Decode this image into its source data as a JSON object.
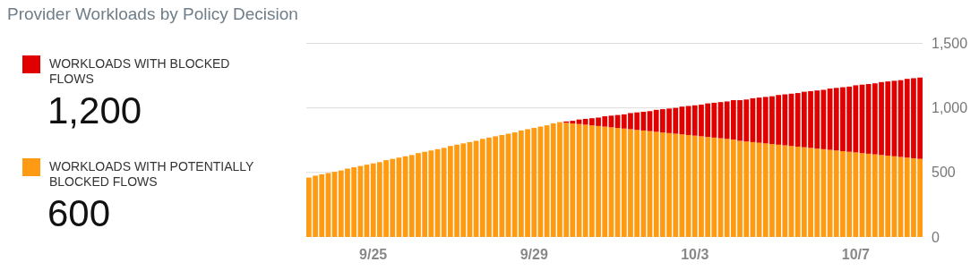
{
  "chart_data": {
    "type": "bar",
    "title": "Provider Workloads by Policy Decision",
    "stacked": true,
    "categories": [
      null,
      null,
      null,
      null,
      null,
      null,
      null,
      null,
      null,
      null,
      "9/25",
      null,
      null,
      null,
      null,
      null,
      null,
      null,
      null,
      null,
      null,
      null,
      null,
      null,
      null,
      null,
      null,
      null,
      null,
      null,
      null,
      null,
      null,
      null,
      null,
      "9/29",
      null,
      null,
      null,
      null,
      null,
      null,
      null,
      null,
      null,
      null,
      null,
      null,
      null,
      null,
      null,
      null,
      null,
      null,
      null,
      null,
      null,
      null,
      null,
      null,
      "10/3",
      null,
      null,
      null,
      null,
      null,
      null,
      null,
      null,
      null,
      null,
      null,
      null,
      null,
      null,
      null,
      null,
      null,
      null,
      null,
      null,
      null,
      null,
      null,
      null,
      "10/7",
      null,
      null,
      null,
      null,
      null,
      null,
      null,
      null,
      null,
      null
    ],
    "series": [
      {
        "name": "WORKLOADS WITH POTENTIALLY BLOCKED FLOWS",
        "color": "#ff9b12",
        "values": [
          460,
          475,
          485,
          495,
          505,
          515,
          530,
          540,
          550,
          560,
          570,
          580,
          595,
          605,
          615,
          625,
          635,
          650,
          660,
          670,
          680,
          690,
          705,
          715,
          725,
          735,
          745,
          760,
          770,
          780,
          790,
          800,
          810,
          825,
          835,
          845,
          855,
          865,
          880,
          890,
          885,
          880,
          875,
          870,
          865,
          860,
          855,
          850,
          845,
          840,
          835,
          830,
          825,
          820,
          815,
          810,
          805,
          800,
          795,
          790,
          785,
          780,
          775,
          770,
          765,
          760,
          755,
          745,
          740,
          735,
          730,
          725,
          720,
          715,
          710,
          705,
          700,
          695,
          690,
          685,
          680,
          675,
          670,
          665,
          660,
          655,
          650,
          645,
          640,
          635,
          630,
          625,
          620,
          615,
          610,
          605
        ]
      },
      {
        "name": "WORKLOADS WITH BLOCKED FLOWS",
        "color": "#e00000",
        "values": [
          0,
          0,
          0,
          0,
          0,
          0,
          0,
          0,
          0,
          0,
          0,
          0,
          0,
          0,
          0,
          0,
          0,
          0,
          0,
          0,
          0,
          0,
          0,
          0,
          0,
          0,
          0,
          0,
          0,
          0,
          0,
          0,
          0,
          0,
          0,
          0,
          0,
          0,
          0,
          0,
          10,
          20,
          35,
          45,
          55,
          65,
          80,
          90,
          100,
          110,
          125,
          135,
          145,
          155,
          170,
          180,
          190,
          200,
          215,
          225,
          235,
          245,
          260,
          270,
          280,
          290,
          305,
          315,
          325,
          340,
          350,
          360,
          370,
          385,
          395,
          405,
          415,
          430,
          440,
          450,
          460,
          475,
          485,
          495,
          505,
          520,
          530,
          540,
          550,
          565,
          575,
          585,
          595,
          610,
          620,
          630
        ]
      }
    ],
    "annotations": [
      "600",
      "1,200"
    ],
    "ylim": [
      0,
      1500
    ],
    "yticks": [
      0,
      500,
      {
        "value": 1000,
        "label": "1,000"
      },
      {
        "value": 1500,
        "label": "1,500"
      }
    ],
    "grid": "y",
    "legend": "top left"
  }
}
